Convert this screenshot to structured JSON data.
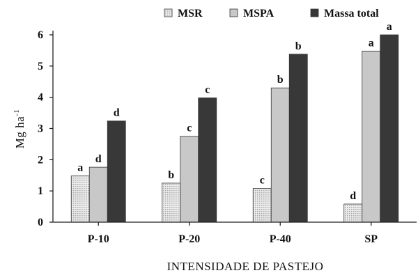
{
  "chart_data": {
    "type": "bar",
    "categories": [
      "P-10",
      "P-20",
      "P-40",
      "SP"
    ],
    "series": [
      {
        "name": "MSR",
        "values": [
          1.48,
          1.25,
          1.08,
          0.58
        ],
        "letters": [
          "a",
          "b",
          "c",
          "d"
        ],
        "color": "#e2e2e2",
        "pattern": "dotted"
      },
      {
        "name": "MSPA",
        "values": [
          1.76,
          2.75,
          4.3,
          5.48
        ],
        "letters": [
          "d",
          "c",
          "b",
          "a"
        ],
        "color": "#c8c8c8",
        "pattern": "solid"
      },
      {
        "name": "Massa total",
        "values": [
          3.24,
          3.98,
          5.38,
          6.0
        ],
        "letters": [
          "d",
          "c",
          "b",
          "a"
        ],
        "color": "#383838",
        "pattern": "solid"
      }
    ],
    "xlabel": "INTENSIDADE DE PASTEJO",
    "ylabel": "Mg ha",
    "ylabel_superscript": "-1",
    "ylim": [
      0,
      6
    ],
    "yticks": [
      0,
      1,
      2,
      3,
      4,
      5,
      6
    ],
    "grid": false,
    "legend_position": "top"
  }
}
